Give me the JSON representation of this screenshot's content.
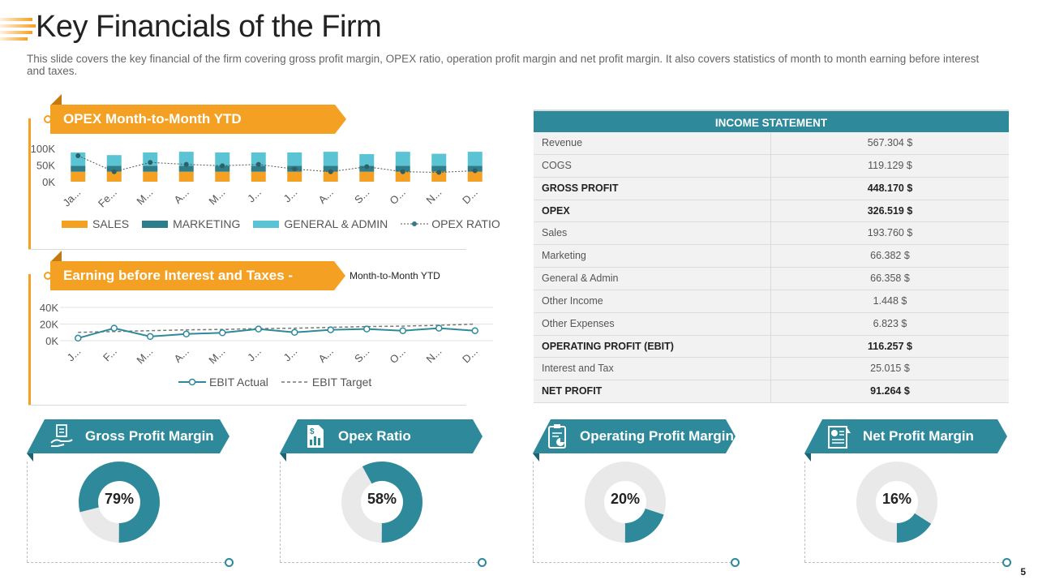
{
  "title": "Key Financials of the Firm",
  "subtitle": "This slide covers the key financial of the firm covering gross profit margin, OPEX ratio, operation profit margin and net profit margin. It also covers statistics of month to month earning before interest and taxes.",
  "colors": {
    "orange": "#f4a023",
    "dark_teal": "#2e7d8a",
    "light_teal": "#5bc4d4",
    "teal": "#2e8a9b",
    "ring_bg": "#e9e9e9"
  },
  "opex_panel": {
    "banner": "OPEX Month-to-Month  YTD"
  },
  "ebit_panel": {
    "banner": "Earning before Interest and Taxes -",
    "banner_suffix": "Month-to-Month YTD"
  },
  "chart_data": [
    {
      "type": "bar",
      "stacked": true,
      "title": "OPEX Month-to-Month  YTD",
      "categories": [
        "Ja...",
        "Fe...",
        "M...",
        "A...",
        "M...",
        "J...",
        "J...",
        "A...",
        "S...",
        "O...",
        "N...",
        "D..."
      ],
      "y_ticks": [
        "100K",
        "50K",
        "0K"
      ],
      "ylim": [
        0,
        100000
      ],
      "series": [
        {
          "name": "SALES",
          "values": [
            30000,
            30000,
            30000,
            30000,
            30000,
            30000,
            30000,
            30000,
            30000,
            30000,
            30000,
            30000
          ]
        },
        {
          "name": "MARKETING",
          "values": [
            18000,
            18000,
            18000,
            18000,
            18000,
            18000,
            18000,
            18000,
            18000,
            18000,
            18000,
            18000
          ]
        },
        {
          "name": "GENERAL & ADMIN",
          "values": [
            40000,
            32000,
            40000,
            42000,
            40000,
            40000,
            40000,
            42000,
            35000,
            42000,
            36000,
            42000
          ]
        }
      ],
      "line_series": {
        "name": "OPEX  RATIO",
        "values": [
          78000,
          30000,
          58000,
          52000,
          48000,
          52000,
          38000,
          30000,
          45000,
          30000,
          28000,
          33000
        ]
      }
    },
    {
      "type": "line",
      "title": "Earning before Interest and Taxes - Month-to-Month YTD",
      "categories": [
        "J...",
        "F...",
        "M...",
        "A...",
        "M...",
        "J...",
        "J...",
        "A...",
        "S...",
        "O...",
        "N...",
        "D..."
      ],
      "y_ticks": [
        "40K",
        "20K",
        "0K"
      ],
      "ylim": [
        0,
        40000
      ],
      "series": [
        {
          "name": "EBIT Actual",
          "values": [
            3000,
            15000,
            5000,
            8000,
            9500,
            14000,
            10000,
            13000,
            14000,
            12000,
            15000,
            12000
          ]
        },
        {
          "name": "EBIT Target",
          "values": [
            10000,
            11000,
            12000,
            13000,
            13500,
            14500,
            15000,
            16000,
            17000,
            17500,
            18500,
            20000
          ],
          "dashed": true
        }
      ]
    }
  ],
  "income_statement": {
    "header": "INCOME STATEMENT",
    "rows": [
      {
        "label": "Revenue",
        "value": "567.304 $",
        "bold": false
      },
      {
        "label": "COGS",
        "value": "119.129 $",
        "bold": false
      },
      {
        "label": "GROSS PROFIT",
        "value": "448.170 $",
        "bold": true
      },
      {
        "label": "OPEX",
        "value": "326.519 $",
        "bold": true
      },
      {
        "label": "Sales",
        "value": "193.760 $",
        "bold": false
      },
      {
        "label": "Marketing",
        "value": "66.382 $",
        "bold": false
      },
      {
        "label": "General & Admin",
        "value": "66.358 $",
        "bold": false
      },
      {
        "label": "Other Income",
        "value": "1.448 $",
        "bold": false
      },
      {
        "label": "Other Expenses",
        "value": "6.823 $",
        "bold": false
      },
      {
        "label": "OPERATING PROFIT (EBIT)",
        "value": "116.257 $",
        "bold": true
      },
      {
        "label": "Interest and Tax",
        "value": "25.015 $",
        "bold": false
      },
      {
        "label": "NET PROFIT",
        "value": "91.264 $",
        "bold": true
      }
    ]
  },
  "kpis": [
    {
      "label": "Gross Profit Margin",
      "percent_text": "79%",
      "percent": 79,
      "icon": "hand-money-icon"
    },
    {
      "label": "Opex Ratio",
      "percent_text": "58%",
      "percent": 58,
      "icon": "dollar-chart-icon"
    },
    {
      "label": "Operating Profit Margin",
      "percent_text": "20%",
      "percent": 20,
      "icon": "clipboard-chart-icon"
    },
    {
      "label": "Net Profit Margin",
      "percent_text": "16%",
      "percent": 16,
      "icon": "presentation-icon"
    }
  ],
  "page_number": "5"
}
